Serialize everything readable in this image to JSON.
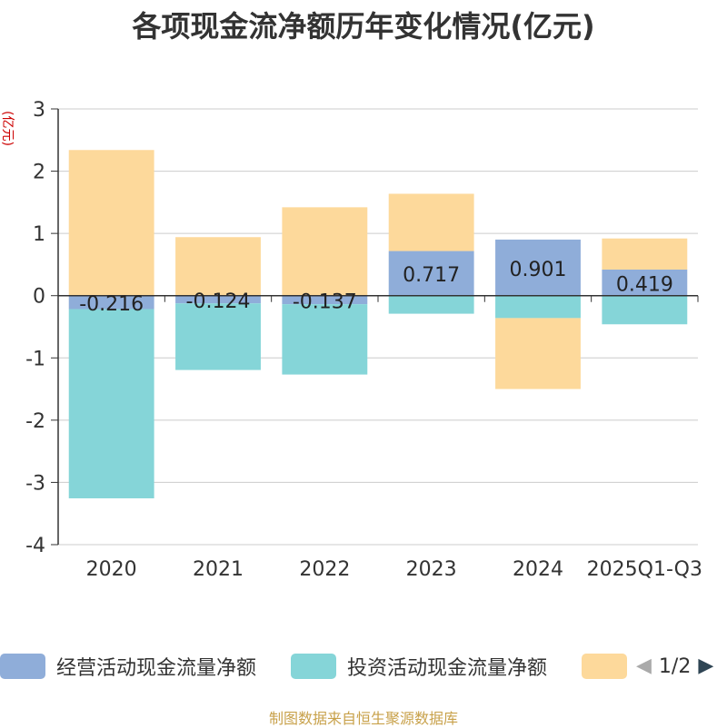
{
  "chart_data": {
    "type": "bar",
    "stacked": true,
    "title": "各项现金流净额历年变化情况(亿元)",
    "ylabel": "(亿元)",
    "xlabel": "",
    "ylim": [
      -4,
      3
    ],
    "yticks": [
      3,
      2,
      1,
      0,
      -1,
      -2,
      -3,
      -4
    ],
    "grid": true,
    "categories": [
      "2020",
      "2021",
      "2022",
      "2023",
      "2024",
      "2025Q1-Q3"
    ],
    "series": [
      {
        "name": "经营活动现金流量净额",
        "color": "#8fadd9",
        "values": [
          -0.216,
          -0.124,
          -0.137,
          0.717,
          0.901,
          0.419
        ],
        "labels": [
          "-0.216",
          "-0.124",
          "-0.137",
          "0.717",
          "0.901",
          "0.419"
        ]
      },
      {
        "name": "投资活动现金流量净额",
        "color": "#85d5d8",
        "values": [
          -3.04,
          -1.07,
          -1.13,
          -0.29,
          -0.36,
          -0.46
        ]
      },
      {
        "name": "",
        "color": "#fdd99b",
        "values": [
          2.34,
          0.94,
          1.42,
          0.92,
          -1.14,
          0.5
        ]
      }
    ],
    "legend": {
      "placement": "bottom",
      "page": "1/2"
    },
    "source": "制图数据来自恒生聚源数据库"
  }
}
